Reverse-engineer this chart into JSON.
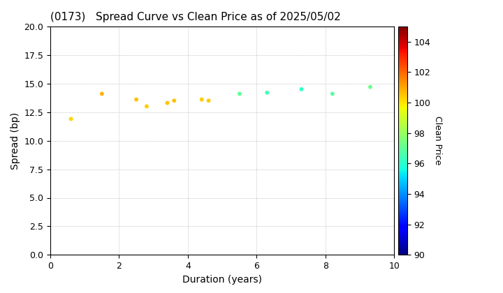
{
  "title": "(0173)   Spread Curve vs Clean Price as of 2025/05/02",
  "xlabel": "Duration (years)",
  "ylabel": "Spread (bp)",
  "colorbar_label": "Clean Price",
  "xlim": [
    0,
    10
  ],
  "ylim": [
    0.0,
    20.0
  ],
  "yticks": [
    0.0,
    2.5,
    5.0,
    7.5,
    10.0,
    12.5,
    15.0,
    17.5,
    20.0
  ],
  "xticks": [
    0,
    2,
    4,
    6,
    8,
    10
  ],
  "colorbar_min": 90,
  "colorbar_max": 105,
  "colorbar_ticks": [
    90,
    92,
    94,
    96,
    98,
    100,
    102,
    104
  ],
  "points": [
    {
      "duration": 0.6,
      "spread": 11.9,
      "price": 100.2
    },
    {
      "duration": 1.5,
      "spread": 14.1,
      "price": 100.8
    },
    {
      "duration": 2.5,
      "spread": 13.6,
      "price": 100.6
    },
    {
      "duration": 2.8,
      "spread": 13.0,
      "price": 100.4
    },
    {
      "duration": 3.4,
      "spread": 13.3,
      "price": 100.5
    },
    {
      "duration": 3.6,
      "spread": 13.5,
      "price": 100.6
    },
    {
      "duration": 4.4,
      "spread": 13.6,
      "price": 100.4
    },
    {
      "duration": 4.6,
      "spread": 13.5,
      "price": 100.4
    },
    {
      "duration": 5.5,
      "spread": 14.1,
      "price": 97.0
    },
    {
      "duration": 6.3,
      "spread": 14.2,
      "price": 96.5
    },
    {
      "duration": 7.3,
      "spread": 14.5,
      "price": 96.2
    },
    {
      "duration": 8.2,
      "spread": 14.1,
      "price": 96.8
    },
    {
      "duration": 9.3,
      "spread": 14.7,
      "price": 97.2
    }
  ],
  "marker_size": 18,
  "background_color": "#ffffff",
  "grid_color": "#999999",
  "title_fontsize": 11,
  "axis_label_fontsize": 10,
  "tick_fontsize": 9,
  "colorbar_fontsize": 9
}
